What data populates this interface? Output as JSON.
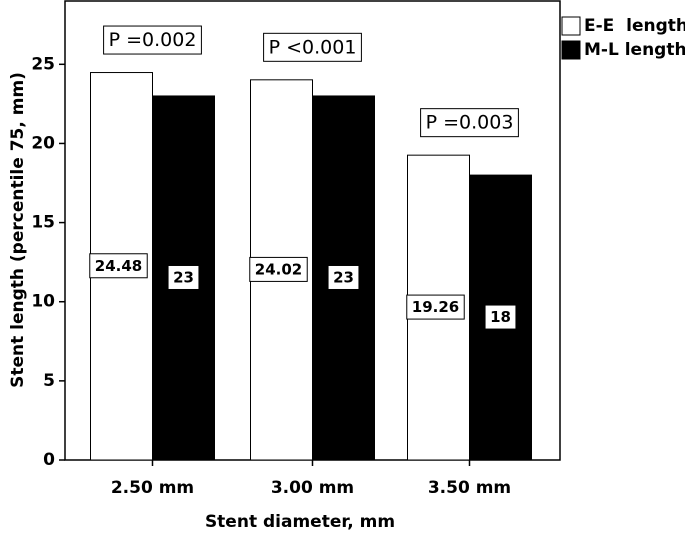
{
  "chart_data": {
    "type": "bar",
    "xlabel": "Stent diameter, mm",
    "ylabel": "Stent length (percentile 75, mm)",
    "categories": [
      "2.50 mm",
      "3.00 mm",
      "3.50 mm"
    ],
    "series": [
      {
        "name": "E-E  length",
        "color": "#ffffff",
        "values": [
          24.48,
          24.02,
          19.26
        ]
      },
      {
        "name": "M-L length",
        "color": "#000000",
        "values": [
          23,
          23,
          18
        ]
      }
    ],
    "annotations": [
      "P =0.002",
      "P <0.001",
      "P =0.003"
    ],
    "ylim": [
      0,
      29
    ],
    "yticks": [
      0,
      5,
      10,
      15,
      20,
      25
    ],
    "legend": "right"
  }
}
